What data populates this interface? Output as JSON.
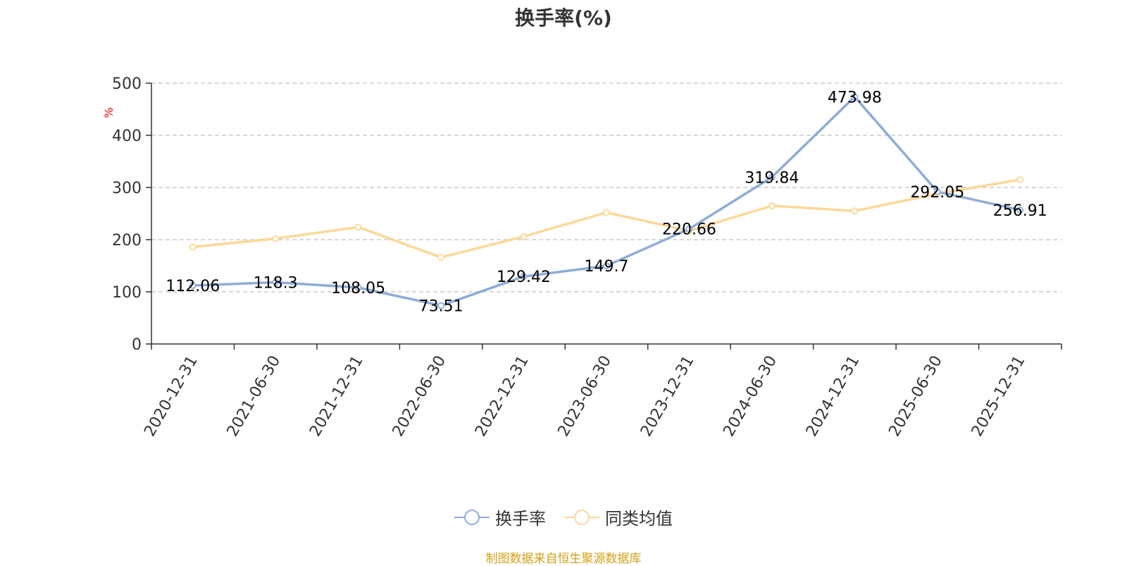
{
  "chart_data": {
    "type": "line",
    "title": "换手率(%)",
    "ylabel": "%",
    "ylim": [
      0,
      500
    ],
    "yticks": [
      0,
      100,
      200,
      300,
      400,
      500
    ],
    "grid": true,
    "legend_position": "bottom",
    "categories": [
      "2020-12-31",
      "2021-06-30",
      "2021-12-31",
      "2022-06-30",
      "2022-12-31",
      "2023-06-30",
      "2023-12-31",
      "2024-06-30",
      "2024-12-31",
      "2025-06-30",
      "2025-12-31"
    ],
    "series": [
      {
        "name": "换手率",
        "color": "#8eacd8",
        "show_labels": true,
        "values": [
          112.06,
          118.3,
          108.05,
          73.51,
          129.42,
          149.7,
          220.66,
          319.84,
          473.98,
          292.05,
          256.91
        ]
      },
      {
        "name": "同类均值",
        "color": "#fcd898",
        "show_labels": false,
        "values": [
          186,
          202,
          224,
          166,
          206,
          252,
          217,
          265,
          255,
          288,
          315
        ]
      }
    ]
  },
  "footer": {
    "source": "制图数据来自恒生聚源数据库"
  },
  "colors": {
    "source_text": "#d4a017",
    "ylabel": "#ff0000"
  }
}
